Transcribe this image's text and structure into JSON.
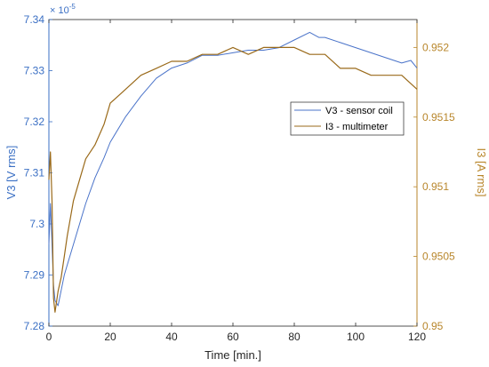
{
  "colors": {
    "left_axis": "#3a6fc4",
    "right_axis": "#b8862b",
    "series_v3": "#4a73c9",
    "series_i3": "#9a6a1a",
    "axis_black": "#262626"
  },
  "chart_data": {
    "type": "line",
    "xlabel": "Time [min.]",
    "ylabel_left": "V3 [V rms]",
    "ylabel_right": "I3 [A rms]",
    "left_exponent": "× 10",
    "left_exponent_power": "-5",
    "xlim": [
      0,
      120
    ],
    "ylim_left": [
      7.28,
      7.34
    ],
    "ylim_right": [
      0.95,
      0.9522
    ],
    "x_ticks": [
      0,
      20,
      40,
      60,
      80,
      100,
      120
    ],
    "y_left_ticks": [
      7.28,
      7.29,
      7.3,
      7.31,
      7.32,
      7.33,
      7.34
    ],
    "y_left_tick_labels": [
      "7.28",
      "7.29",
      "7.3",
      "7.31",
      "7.32",
      "7.33",
      "7.34"
    ],
    "y_right_ticks": [
      0.95,
      0.9505,
      0.951,
      0.9515,
      0.952
    ],
    "y_right_tick_labels": [
      "0.95",
      "0.9505",
      "0.951",
      "0.9515",
      "0.952"
    ],
    "legend_position": "center-right",
    "legend": [
      "V3 - sensor coil",
      "I3 - multimeter"
    ],
    "series": [
      {
        "name": "V3 - sensor coil",
        "axis": "left",
        "x": [
          0,
          0.5,
          1,
          1.5,
          2,
          3,
          4,
          5,
          6,
          8,
          10,
          12,
          15,
          18,
          20,
          25,
          30,
          35,
          40,
          45,
          50,
          55,
          60,
          65,
          70,
          75,
          80,
          85,
          88,
          90,
          95,
          100,
          105,
          110,
          115,
          118,
          120
        ],
        "y": [
          7.296,
          7.304,
          7.296,
          7.288,
          7.285,
          7.284,
          7.287,
          7.29,
          7.292,
          7.296,
          7.3,
          7.304,
          7.309,
          7.313,
          7.316,
          7.321,
          7.325,
          7.3285,
          7.3305,
          7.3315,
          7.333,
          7.333,
          7.3335,
          7.334,
          7.334,
          7.3345,
          7.336,
          7.3375,
          7.3365,
          7.3365,
          7.3355,
          7.3345,
          7.3335,
          7.3325,
          7.3315,
          7.332,
          7.3305
        ]
      },
      {
        "name": "I3 - multimeter",
        "axis": "right",
        "x": [
          0,
          0.5,
          1,
          1.5,
          2,
          3,
          4,
          5,
          6,
          8,
          10,
          12,
          15,
          18,
          20,
          25,
          30,
          35,
          40,
          45,
          50,
          55,
          60,
          65,
          70,
          75,
          80,
          85,
          90,
          95,
          100,
          105,
          110,
          115,
          120
        ],
        "y": [
          0.95105,
          0.95125,
          0.9509,
          0.9502,
          0.9501,
          0.95025,
          0.95035,
          0.9505,
          0.95065,
          0.9509,
          0.95105,
          0.9512,
          0.9513,
          0.95145,
          0.9516,
          0.9517,
          0.9518,
          0.95185,
          0.9519,
          0.9519,
          0.95195,
          0.95195,
          0.952,
          0.95195,
          0.952,
          0.952,
          0.952,
          0.95195,
          0.95195,
          0.95185,
          0.95185,
          0.9518,
          0.9518,
          0.9518,
          0.9517
        ]
      }
    ]
  }
}
